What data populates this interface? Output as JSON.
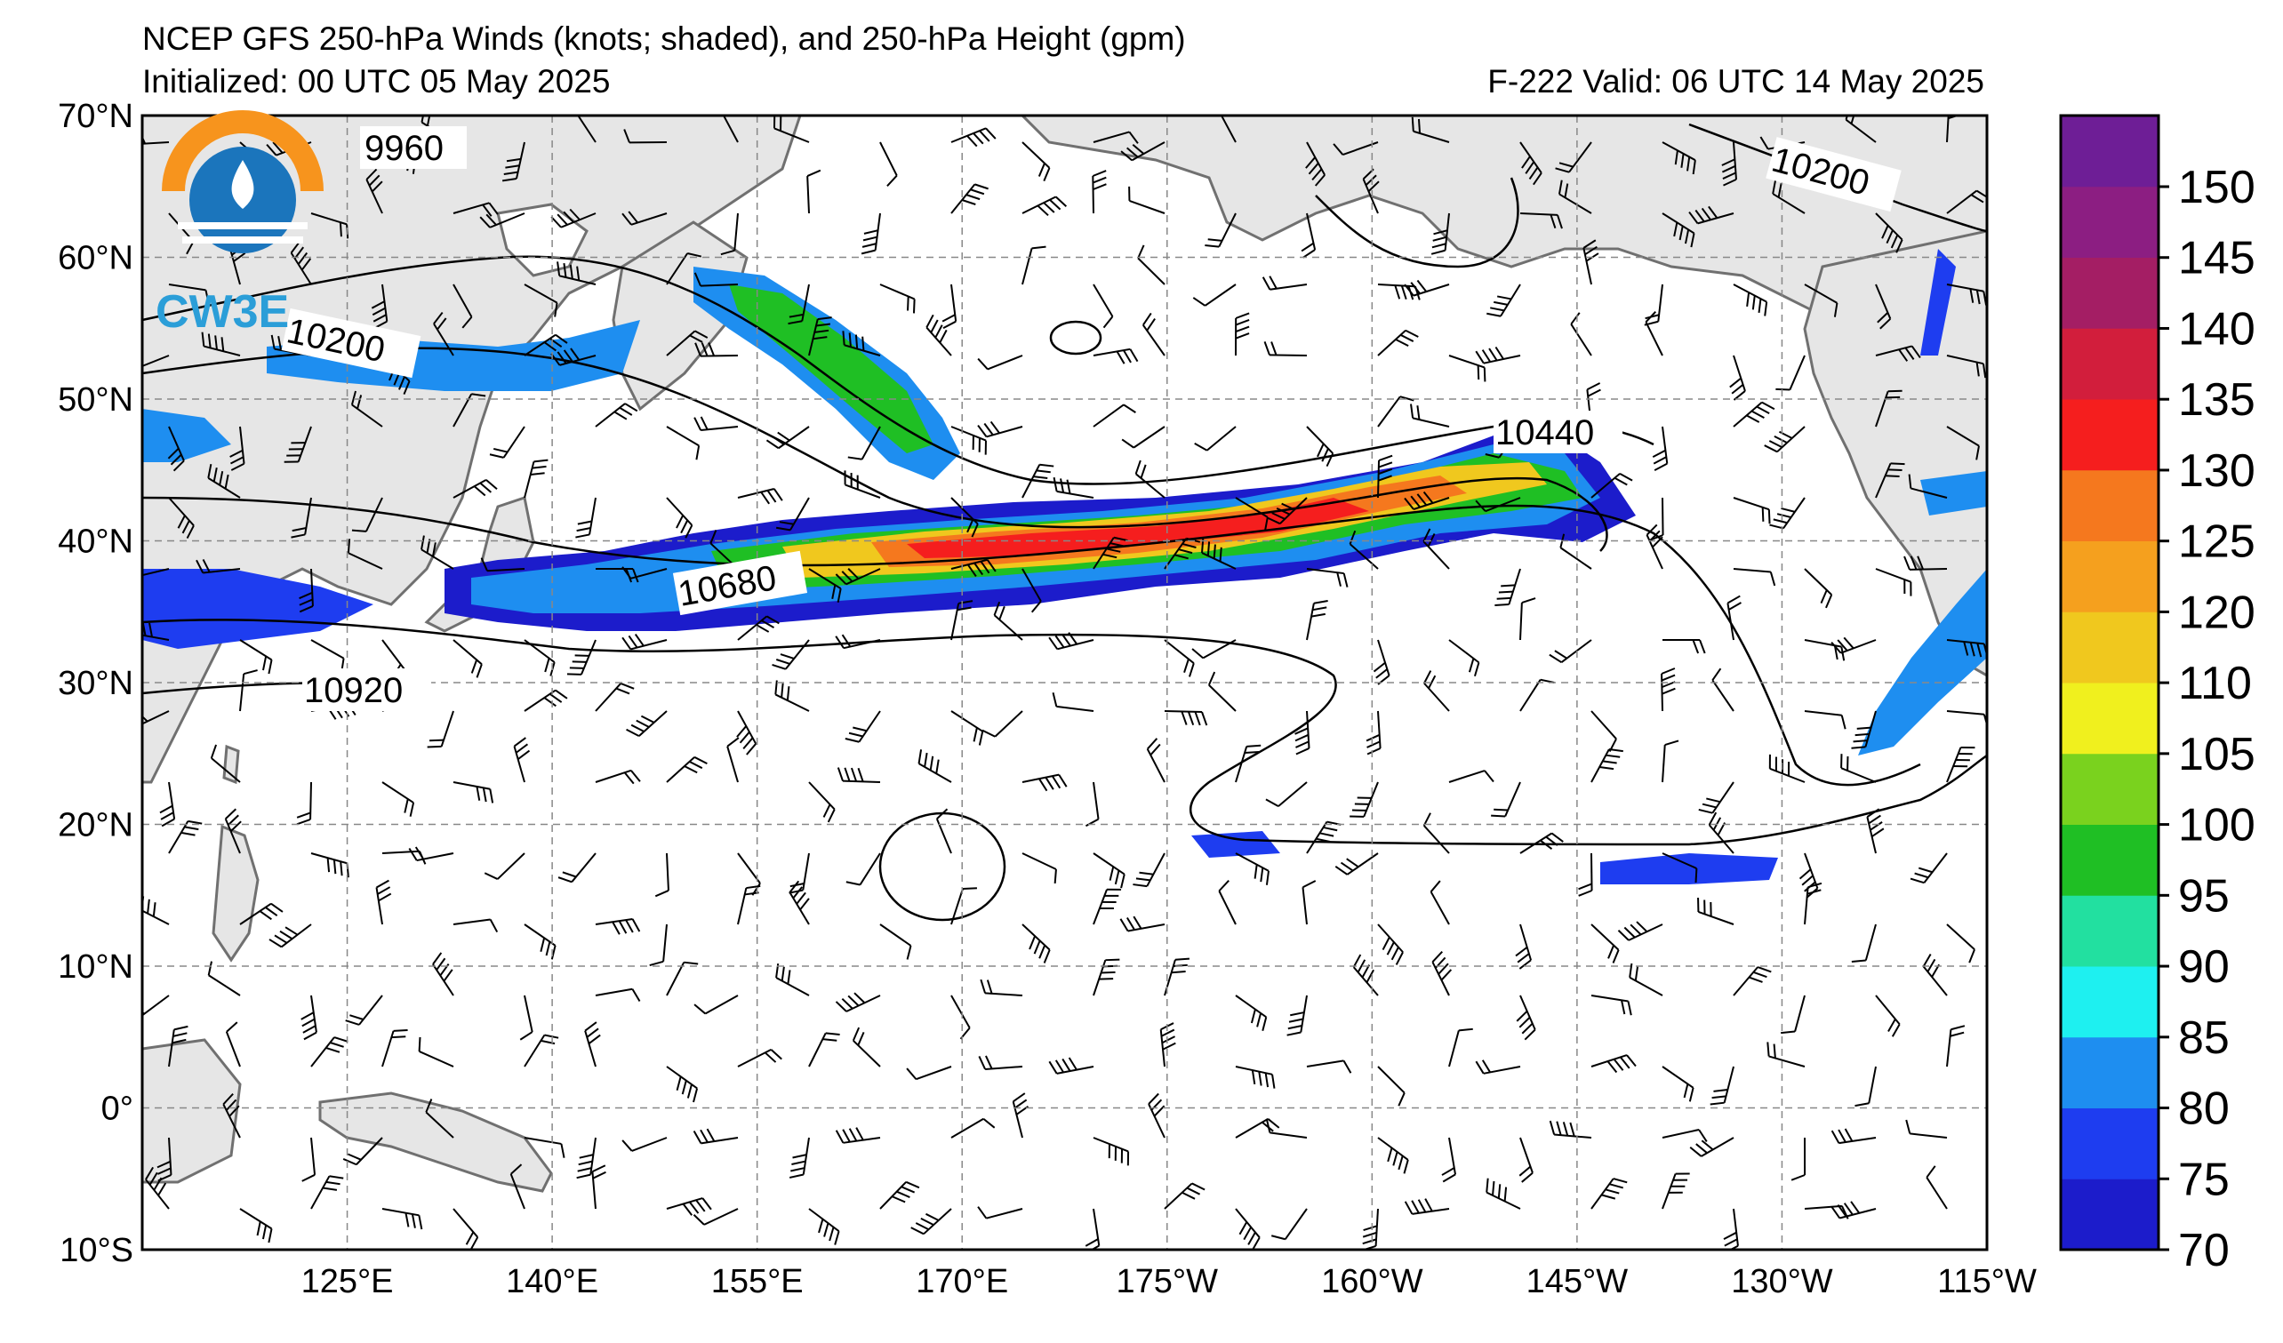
{
  "header": {
    "title": "NCEP GFS 250-hPa Winds (knots; shaded), and 250-hPa Height (gpm)",
    "initialized": "Initialized: 00 UTC 05 May 2025",
    "valid": "F-222  Valid: 06 UTC 14 May 2025"
  },
  "logo": {
    "text": "CW3E",
    "colors": [
      "#f7941d",
      "#1b75bc",
      "#2b9ed8"
    ]
  },
  "map": {
    "projection": "cylindrical",
    "lon_range": [
      "110°E",
      "115°W"
    ],
    "lat_range": [
      "10°S",
      "70°N"
    ],
    "gridlines": "dashed",
    "lat_labels": [
      "70°N",
      "60°N",
      "50°N",
      "40°N",
      "30°N",
      "20°N",
      "10°N",
      "0°",
      "10°S"
    ],
    "lon_labels": [
      "125°E",
      "140°E",
      "155°E",
      "170°E",
      "175°W",
      "160°W",
      "145°W",
      "130°W",
      "115°W"
    ],
    "contour_labels": [
      "9960",
      "10200",
      "10440",
      "10680",
      "10920",
      "10200"
    ],
    "land_color": "#e6e6e6",
    "coast_color": "#707070"
  },
  "colorbar": {
    "labels": [
      "150",
      "145",
      "140",
      "135",
      "130",
      "125",
      "120",
      "110",
      "105",
      "100",
      "95",
      "90",
      "85",
      "80",
      "75",
      "70"
    ],
    "colors": [
      "#1c1ccb",
      "#1e3df0",
      "#1e8ef0",
      "#1ef0f0",
      "#22e0a0",
      "#1fbf24",
      "#7ad21e",
      "#f0f01e",
      "#f0c81e",
      "#f5a01e",
      "#f5781e",
      "#f51e1e",
      "#d21e3c",
      "#a41e64",
      "#8c1e82",
      "#6e1e96"
    ]
  }
}
